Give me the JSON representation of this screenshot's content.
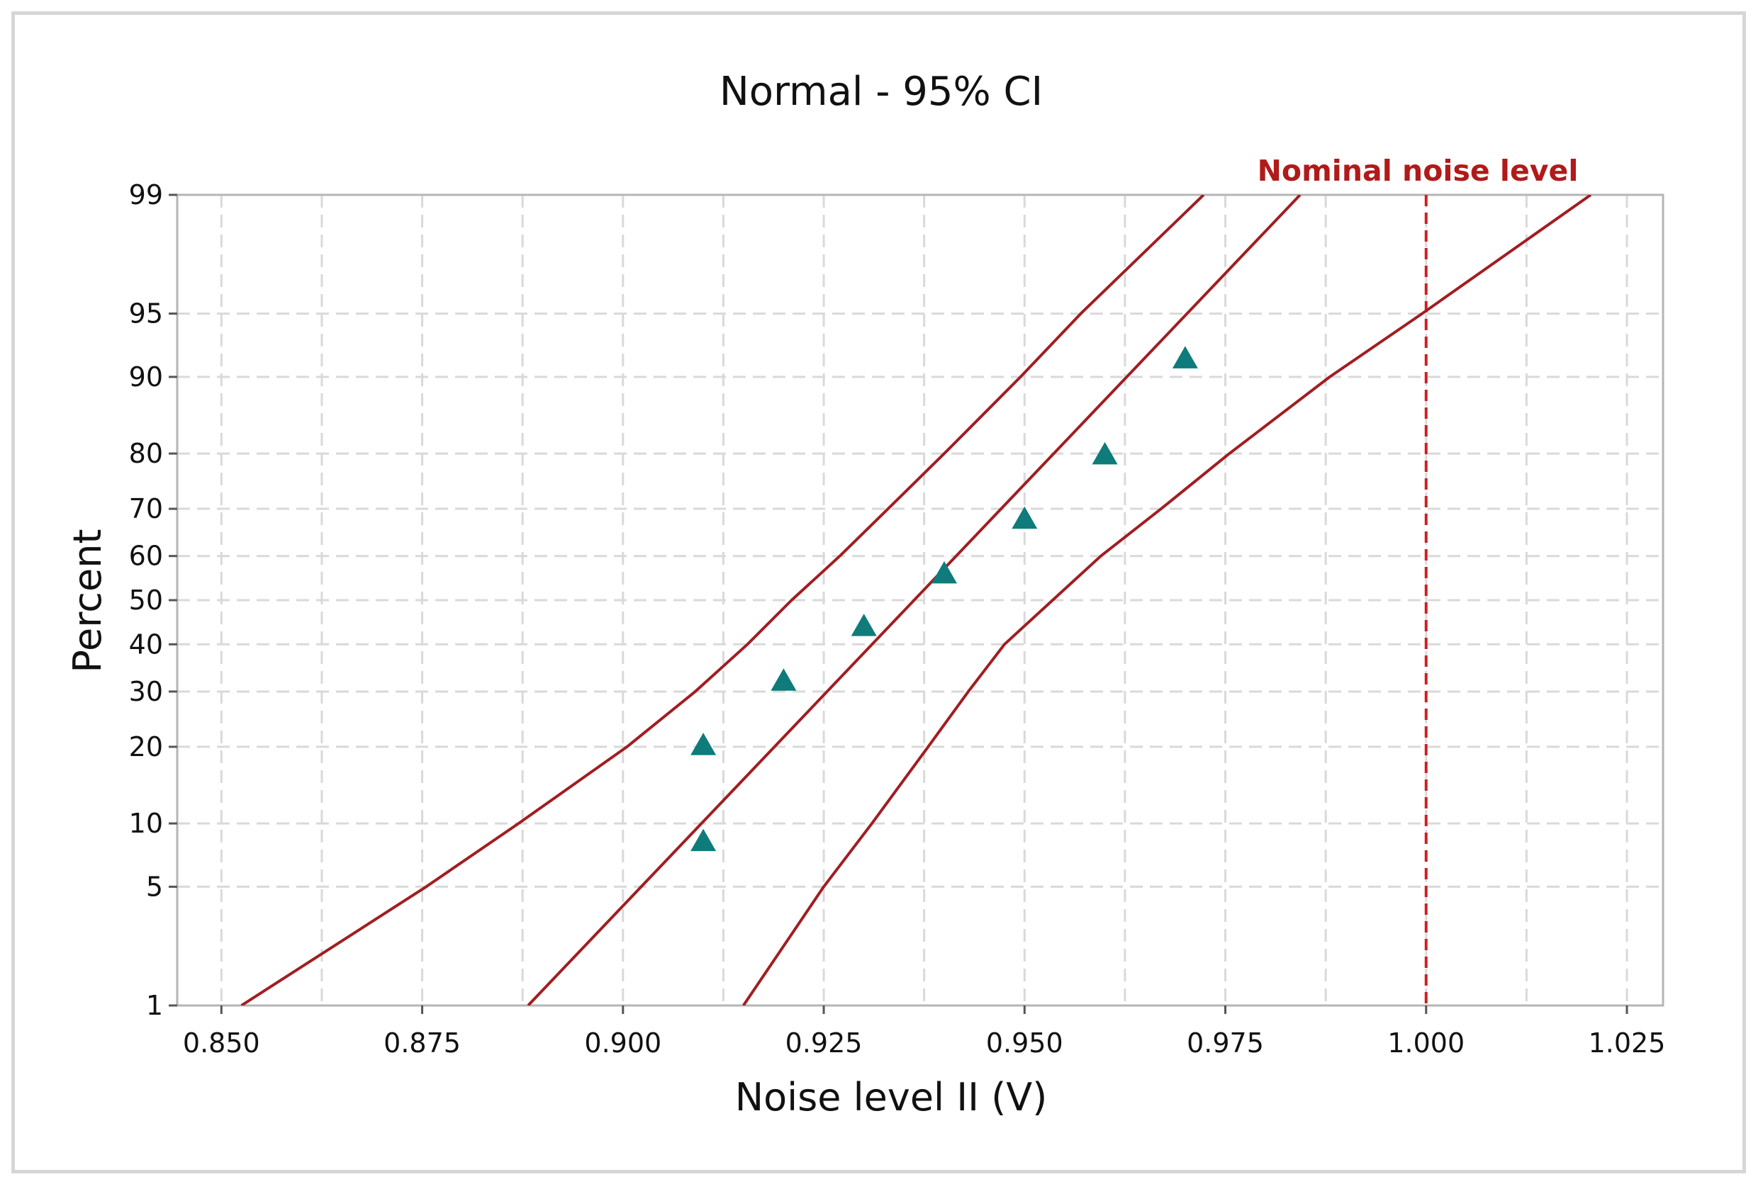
{
  "chart_data": {
    "type": "scatter",
    "title": "Normal - 95% CI",
    "xlabel": "Noise level II (V)",
    "ylabel": "Percent",
    "xlim": [
      0.8445,
      1.0295
    ],
    "xticks": [
      0.85,
      0.875,
      0.9,
      0.925,
      0.95,
      0.975,
      1.0,
      1.025
    ],
    "xtick_labels": [
      "0.850",
      "0.875",
      "0.900",
      "0.925",
      "0.950",
      "0.975",
      "1.000",
      "1.025"
    ],
    "x_minor_gridlines": [
      0.8625,
      0.8875,
      0.9125,
      0.9375,
      0.9625,
      0.9875,
      1.0125
    ],
    "y_scale": "normal-probability",
    "ylim": [
      1,
      99
    ],
    "yticks": [
      1,
      5,
      10,
      20,
      30,
      40,
      50,
      60,
      70,
      80,
      90,
      95,
      99
    ],
    "grid": true,
    "series": [
      {
        "name": "Noise level II",
        "marker": "triangle",
        "color": "#0f7b7b",
        "x": [
          0.91,
          0.91,
          0.92,
          0.93,
          0.94,
          0.95,
          0.96,
          0.97
        ],
        "y": [
          8.3,
          20.2,
          32.1,
          44.0,
          56.0,
          67.9,
          79.8,
          91.7
        ]
      }
    ],
    "fit_line": {
      "name": "fit",
      "mean": 0.93625,
      "sd": 0.02066,
      "color": "#a01e22"
    },
    "ci_bounds": {
      "name": "95% CI",
      "color": "#a01e22",
      "percent": [
        1,
        5,
        10,
        20,
        30,
        40,
        50,
        60,
        70,
        80,
        90,
        95,
        99
      ],
      "lower_x": [
        0.8525,
        0.8755,
        0.887,
        0.9005,
        0.909,
        0.9155,
        0.921,
        0.927,
        0.933,
        0.94,
        0.9495,
        0.957,
        0.9723
      ],
      "upper_x": [
        0.915,
        0.925,
        0.931,
        0.938,
        0.943,
        0.9475,
        0.9535,
        0.9595,
        0.967,
        0.9755,
        0.988,
        0.9995,
        1.0205
      ]
    },
    "reference_line": {
      "label": "Nominal noise level",
      "x": 1.0,
      "color": "#d11f1f",
      "style": "dashed"
    }
  }
}
